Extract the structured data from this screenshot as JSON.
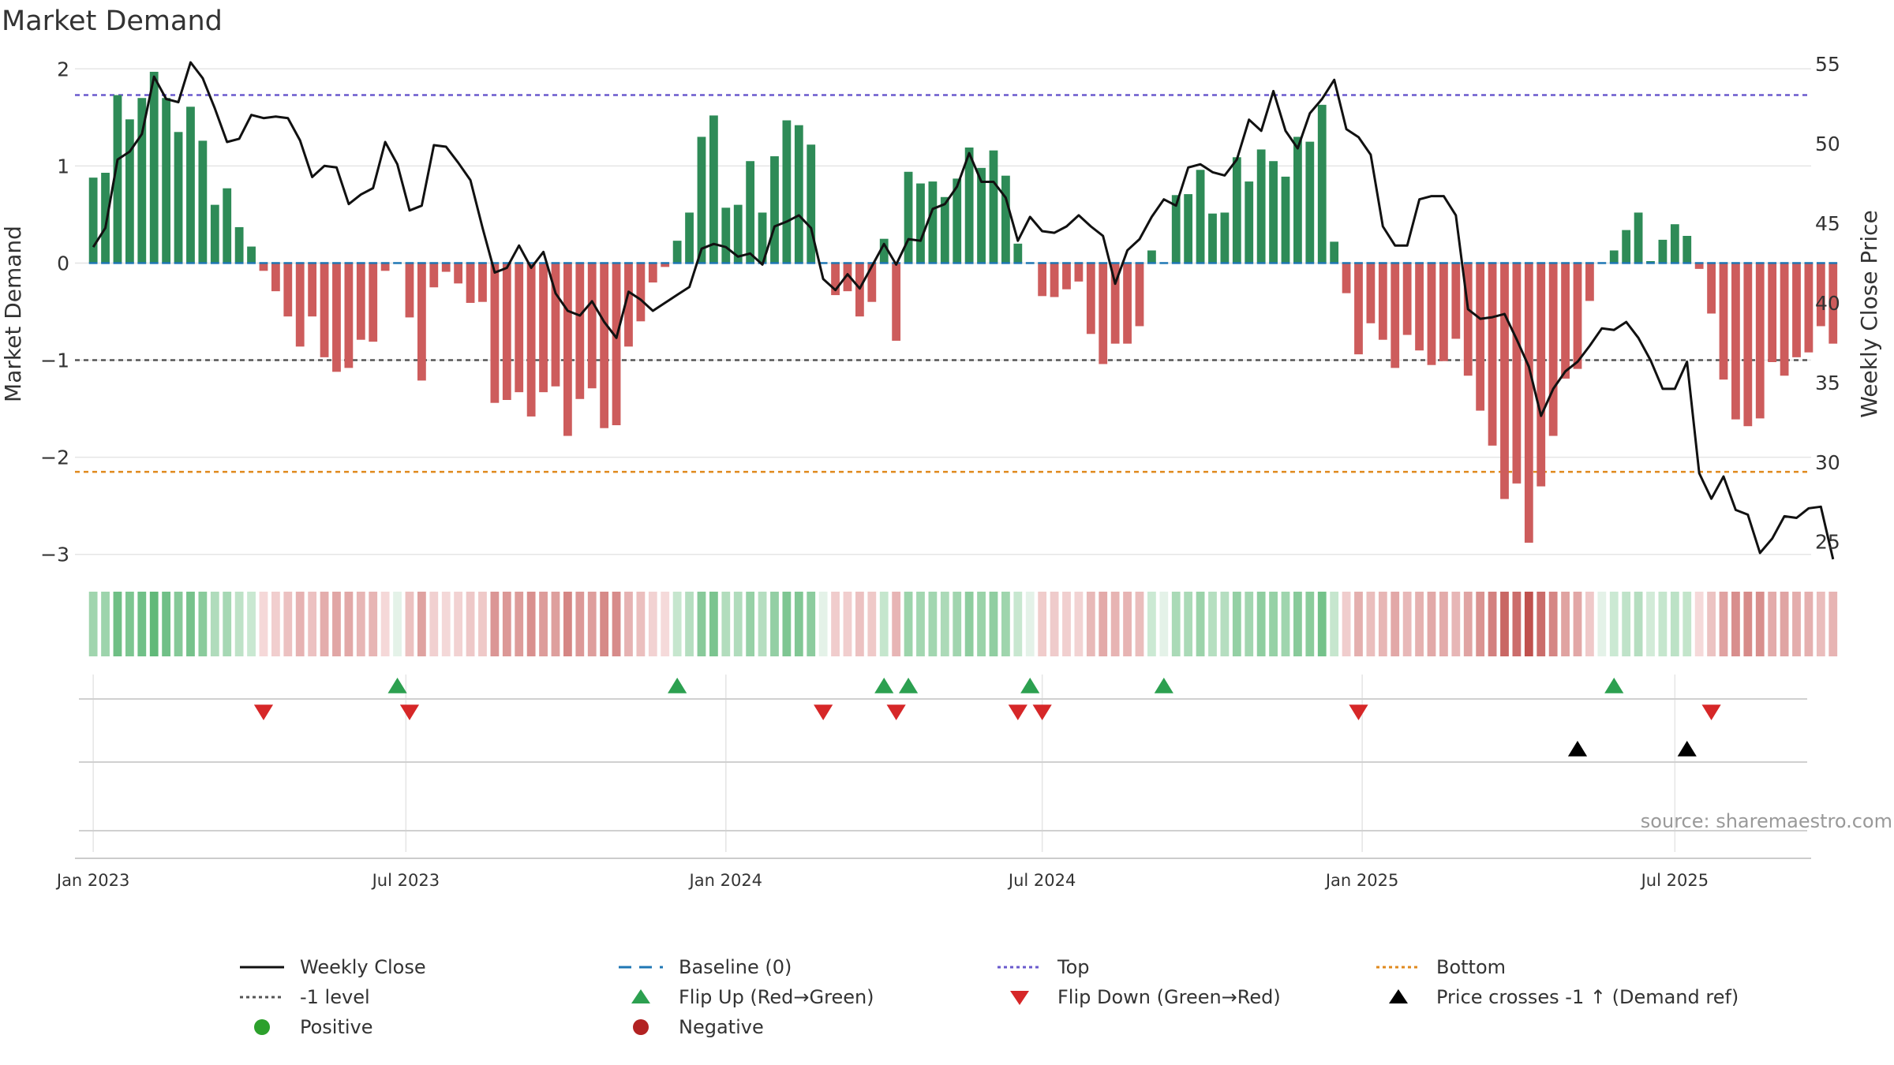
{
  "chart_data": {
    "type": "bar",
    "title": "Market Demand",
    "ylabel_left": "Market Demand",
    "ylabel_right": "Weekly Close Price",
    "source": "source: sharemaestro.com",
    "ylim_left": [
      -3.1,
      2.1
    ],
    "ylim_right": [
      23.6,
      55.3
    ],
    "yticks_left": [
      {
        "v": 2,
        "label": "2"
      },
      {
        "v": 1,
        "label": "1"
      },
      {
        "v": 0,
        "label": "0"
      },
      {
        "v": -1,
        "label": "−1"
      },
      {
        "v": -2,
        "label": "−2"
      },
      {
        "v": -3,
        "label": "−3"
      }
    ],
    "yticks_right": [
      25,
      30,
      35,
      40,
      45,
      50,
      55
    ],
    "xticks": [
      {
        "week": 0,
        "label": "Jan 2023"
      },
      {
        "week": 25.7,
        "label": "Jul 2023"
      },
      {
        "week": 52,
        "label": "Jan 2024"
      },
      {
        "week": 78,
        "label": "Jul 2024"
      },
      {
        "week": 104.3,
        "label": "Jan 2025"
      },
      {
        "week": 130,
        "label": "Jul 2025"
      }
    ],
    "x_range_weeks": [
      -1.5,
      141.2
    ],
    "reference_lines": {
      "top": 1.73,
      "minus_one": -1.0,
      "bottom": -2.15,
      "baseline": 0
    },
    "demand": [
      0.88,
      0.93,
      1.73,
      1.48,
      1.7,
      1.97,
      1.7,
      1.35,
      1.61,
      1.26,
      0.6,
      0.77,
      0.37,
      0.17,
      -0.08,
      -0.29,
      -0.55,
      -0.86,
      -0.55,
      -0.97,
      -1.12,
      -1.08,
      -0.79,
      -0.81,
      -0.08,
      0.0,
      -0.56,
      -1.21,
      -0.25,
      -0.09,
      -0.21,
      -0.41,
      -0.4,
      -1.44,
      -1.41,
      -1.33,
      -1.58,
      -1.33,
      -1.27,
      -1.78,
      -1.4,
      -1.29,
      -1.7,
      -1.67,
      -0.86,
      -0.6,
      -0.2,
      -0.04,
      0.23,
      0.52,
      1.3,
      1.52,
      0.57,
      0.6,
      1.05,
      0.52,
      1.1,
      1.47,
      1.42,
      1.22,
      0.0,
      -0.33,
      -0.29,
      -0.55,
      -0.4,
      0.25,
      -0.8,
      0.94,
      0.82,
      0.84,
      0.68,
      0.87,
      1.19,
      0.98,
      1.16,
      0.9,
      0.2,
      0.0,
      -0.34,
      -0.35,
      -0.27,
      -0.19,
      -0.73,
      -1.04,
      -0.83,
      -0.83,
      -0.65,
      0.13,
      0.0,
      0.7,
      0.71,
      0.96,
      0.51,
      0.52,
      1.09,
      0.84,
      1.17,
      1.05,
      0.89,
      1.3,
      1.25,
      1.63,
      0.22,
      -0.31,
      -0.94,
      -0.62,
      -0.79,
      -1.08,
      -0.74,
      -0.9,
      -1.05,
      -1.01,
      -0.78,
      -1.16,
      -1.52,
      -1.88,
      -2.43,
      -2.27,
      -2.88,
      -2.3,
      -1.78,
      -1.19,
      -1.09,
      -0.39,
      0.0,
      0.13,
      0.34,
      0.52,
      0.02,
      0.24,
      0.4,
      0.28,
      -0.06,
      -0.52,
      -1.2,
      -1.61,
      -1.68,
      -1.6,
      -1.02,
      -1.16,
      -0.97,
      -0.92,
      -0.65,
      -0.83
    ],
    "close": [
      43.5,
      44.7,
      49.0,
      49.5,
      50.6,
      54.2,
      52.8,
      52.6,
      55.1,
      54.1,
      52.2,
      50.1,
      50.3,
      51.8,
      51.6,
      51.7,
      51.6,
      50.2,
      47.9,
      48.6,
      48.5,
      46.2,
      46.8,
      47.2,
      50.1,
      48.7,
      45.8,
      46.1,
      49.9,
      49.8,
      48.8,
      47.7,
      44.7,
      41.9,
      42.2,
      43.6,
      42.2,
      43.2,
      40.6,
      39.5,
      39.2,
      40.1,
      38.8,
      37.8,
      40.7,
      40.2,
      39.5,
      40.0,
      40.5,
      41.0,
      43.4,
      43.7,
      43.5,
      42.9,
      43.1,
      42.4,
      44.8,
      45.1,
      45.5,
      44.7,
      41.5,
      40.8,
      41.8,
      40.9,
      42.3,
      43.7,
      42.4,
      44.0,
      43.9,
      45.9,
      46.2,
      47.3,
      49.4,
      47.6,
      47.6,
      46.6,
      43.9,
      45.4,
      44.5,
      44.4,
      44.8,
      45.5,
      44.8,
      44.2,
      41.2,
      43.3,
      44.0,
      45.4,
      46.5,
      46.1,
      48.5,
      48.7,
      48.2,
      48.0,
      49.0,
      51.5,
      50.8,
      53.3,
      50.8,
      49.7,
      51.9,
      52.8,
      54.0,
      50.9,
      50.4,
      49.3,
      44.8,
      43.6,
      43.6,
      46.5,
      46.7,
      46.7,
      45.5,
      39.6,
      39.0,
      39.1,
      39.3,
      37.7,
      36.0,
      32.9,
      34.6,
      35.7,
      36.3,
      37.3,
      38.4,
      38.3,
      38.8,
      37.8,
      36.4,
      34.6,
      34.6,
      36.3,
      29.3,
      27.7,
      29.1,
      27.0,
      26.7,
      24.3,
      25.2,
      26.6,
      26.5,
      27.1,
      27.2,
      23.9
    ],
    "heat_colors": {
      "pos_light": "#d3ecd9",
      "pos_dark": "#5fb878",
      "neg_light": "#f6dcdc",
      "neg_dark": "#c0504d",
      "neutral": "#e4f2e8"
    },
    "flip_up_weeks": [
      25,
      48,
      65,
      67,
      77,
      88,
      125
    ],
    "flip_down_weeks": [
      14,
      26,
      60,
      66,
      76,
      78,
      104,
      133
    ],
    "price_cross_weeks": [
      122,
      131
    ],
    "colors": {
      "pos_bar": "#2e8b57",
      "neg_bar": "#cd5c5c",
      "close": "#111111",
      "baseline": "#1f77b4",
      "top": "#6a5acd",
      "minus_one": "#555555",
      "bottom": "#e08a1e",
      "flip_up": "#2ca050",
      "flip_down": "#d62728",
      "cross": "#000000",
      "positive": "#2ca02c",
      "negative": "#b22222",
      "grid": "#e5e5e5"
    },
    "legend": [
      {
        "key": "close",
        "label": "Weekly Close"
      },
      {
        "key": "baseline",
        "label": "Baseline (0)"
      },
      {
        "key": "top",
        "label": "Top"
      },
      {
        "key": "bottom",
        "label": "Bottom"
      },
      {
        "key": "minus_one",
        "label": "-1 level"
      },
      {
        "key": "flip_up",
        "label": "Flip Up (Red→Green)"
      },
      {
        "key": "flip_down",
        "label": "Flip Down (Green→Red)"
      },
      {
        "key": "cross",
        "label": "Price crosses -1 ↑ (Demand ref)"
      },
      {
        "key": "positive",
        "label": "Positive"
      },
      {
        "key": "negative",
        "label": "Negative"
      }
    ]
  }
}
